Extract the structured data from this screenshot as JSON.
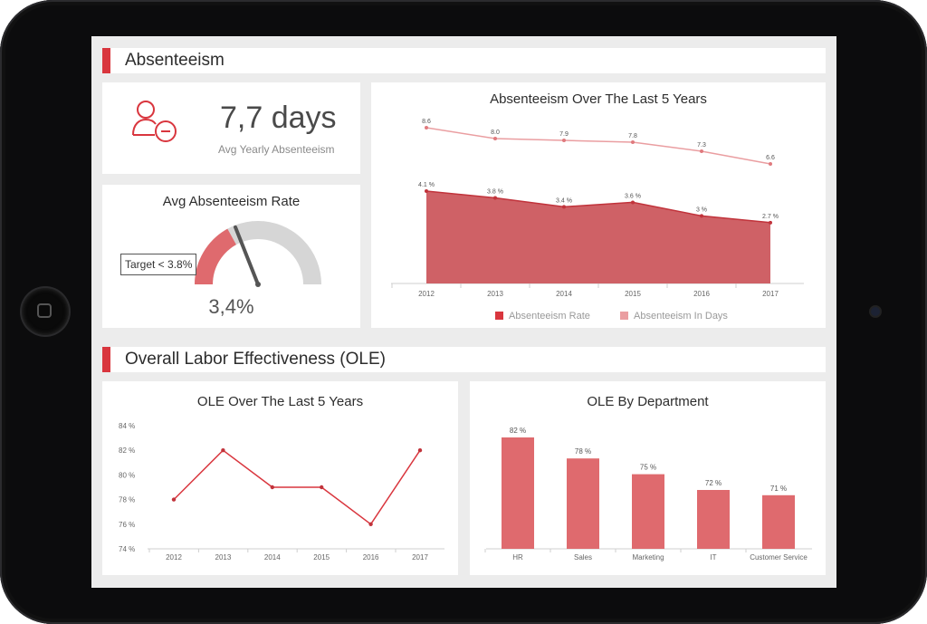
{
  "sections": {
    "absenteeism": {
      "title": "Absenteeism"
    },
    "ole": {
      "title": "Overall Labor Effectiveness (OLE)"
    }
  },
  "kpi": {
    "value": "7,7 days",
    "label": "Avg Yearly Absenteeism",
    "icon": "user-minus-icon"
  },
  "gauge": {
    "title": "Avg Absenteeism Rate",
    "target_label": "Target < 3.8%",
    "value_label": "3,4%",
    "value_fraction": 0.034,
    "target_fraction": 0.038
  },
  "colors": {
    "accent": "#d9363e",
    "area": "#cf6166",
    "light_line": "#ea9ea1",
    "bar": "#df6a6e",
    "gauge_track": "#d6d6d6"
  },
  "chart_data": [
    {
      "type": "area",
      "title": "Absenteeism Over The Last 5 Years",
      "categories": [
        "2012",
        "2013",
        "2014",
        "2015",
        "2016",
        "2017"
      ],
      "series": [
        {
          "name": "Absenteeism Rate",
          "values": [
            4.1,
            3.8,
            3.4,
            3.6,
            3.0,
            2.7
          ],
          "labels": [
            "4.1 %",
            "3.8 %",
            "3.4 %",
            "3.6 %",
            "3 %",
            "2.7 %"
          ]
        },
        {
          "name": "Absenteeism In Days",
          "values": [
            8.6,
            8.0,
            7.9,
            7.8,
            7.3,
            6.6
          ],
          "labels": [
            "8.6",
            "8.0",
            "7.9",
            "7.8",
            "7.3",
            "6.6"
          ]
        }
      ],
      "legend": "bottom"
    },
    {
      "type": "line",
      "title": "OLE Over The Last 5 Years",
      "categories": [
        "2012",
        "2013",
        "2014",
        "2015",
        "2016",
        "2017"
      ],
      "values": [
        78,
        82,
        79,
        79,
        76,
        82
      ],
      "ylim": [
        74,
        84
      ],
      "yticks": [
        "84 %",
        "82 %",
        "80 %",
        "78 %",
        "76 %",
        "74 %"
      ]
    },
    {
      "type": "bar",
      "title": "OLE By Department",
      "categories": [
        "HR",
        "Sales",
        "Marketing",
        "IT",
        "Customer Service"
      ],
      "values": [
        82,
        78,
        75,
        72,
        71
      ],
      "labels": [
        "82 %",
        "78 %",
        "75 %",
        "72 %",
        "71 %"
      ]
    }
  ]
}
